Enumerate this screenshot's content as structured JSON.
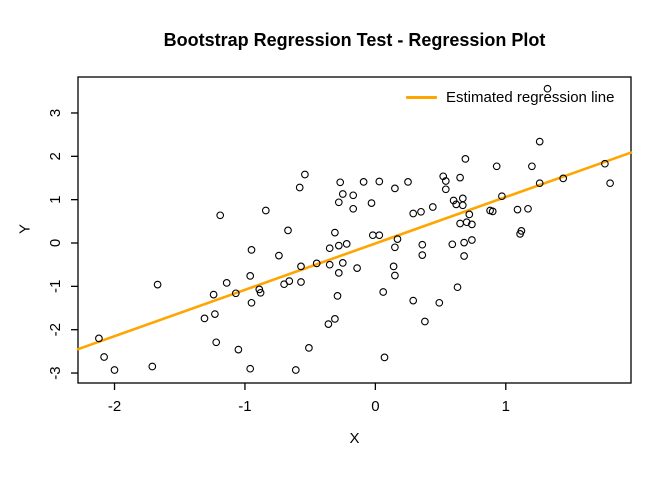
{
  "title": "Bootstrap Regression Test - Regression Plot",
  "colors": {
    "regression_line": "#FFA500",
    "point_stroke": "#000000",
    "axis": "#000000",
    "background": "#FFFFFF"
  },
  "legend": {
    "entries": [
      {
        "label": "Estimated regression line",
        "color": "#FFA500",
        "type": "line"
      }
    ],
    "position": "top-right",
    "box": "none"
  },
  "chart_data": {
    "type": "scatter",
    "title": "Bootstrap Regression Test - Regression Plot",
    "xlabel": "X",
    "ylabel": "Y",
    "xlim": [
      -2.28,
      1.96
    ],
    "ylim": [
      -3.23,
      3.83
    ],
    "x_ticks": [
      -2,
      -1,
      0,
      1
    ],
    "y_ticks": [
      -3,
      -2,
      -1,
      0,
      1,
      2,
      3
    ],
    "grid": false,
    "legend": {
      "entries": [
        {
          "label": "Estimated regression line",
          "color": "#FFA500",
          "type": "line"
        }
      ],
      "position": "top-right"
    },
    "regression_line": {
      "slope": 1.07,
      "intercept": -0.01,
      "color": "#FFA500"
    },
    "points": [
      [
        -0.54,
        1.58
      ],
      [
        -0.58,
        1.28
      ],
      [
        -0.27,
        1.4
      ],
      [
        -0.09,
        1.41
      ],
      [
        -0.25,
        1.13
      ],
      [
        -0.17,
        1.1
      ],
      [
        -0.28,
        0.94
      ],
      [
        -0.17,
        0.79
      ],
      [
        -1.19,
        0.64
      ],
      [
        -0.84,
        0.75
      ],
      [
        -0.67,
        0.29
      ],
      [
        -0.31,
        0.24
      ],
      [
        0.03,
        1.42
      ],
      [
        0.15,
        1.26
      ],
      [
        0.25,
        1.41
      ],
      [
        -0.03,
        0.92
      ],
      [
        0.29,
        0.68
      ],
      [
        0.35,
        0.72
      ],
      [
        -0.02,
        0.18
      ],
      [
        0.03,
        0.18
      ],
      [
        1.32,
        3.56
      ],
      [
        1.26,
        2.34
      ],
      [
        0.69,
        1.94
      ],
      [
        0.93,
        1.77
      ],
      [
        1.2,
        1.77
      ],
      [
        1.76,
        1.83
      ],
      [
        0.52,
        1.54
      ],
      [
        0.54,
        1.43
      ],
      [
        0.65,
        1.51
      ],
      [
        0.54,
        1.24
      ],
      [
        1.26,
        1.38
      ],
      [
        1.44,
        1.49
      ],
      [
        1.8,
        1.38
      ],
      [
        0.44,
        0.83
      ],
      [
        0.6,
        0.98
      ],
      [
        0.62,
        0.89
      ],
      [
        0.67,
        1.03
      ],
      [
        0.67,
        0.87
      ],
      [
        0.97,
        1.08
      ],
      [
        0.88,
        0.75
      ],
      [
        0.9,
        0.73
      ],
      [
        1.09,
        0.77
      ],
      [
        1.17,
        0.79
      ],
      [
        0.65,
        0.45
      ],
      [
        0.7,
        0.48
      ],
      [
        0.74,
        0.43
      ],
      [
        0.72,
        0.66
      ],
      [
        1.12,
        0.28
      ],
      [
        1.11,
        0.21
      ],
      [
        0.74,
        0.07
      ],
      [
        0.68,
        0.01
      ],
      [
        0.59,
        -0.03
      ],
      [
        0.36,
        -0.04
      ],
      [
        0.36,
        -0.28
      ],
      [
        0.68,
        -0.3
      ],
      [
        0.63,
        -1.02
      ],
      [
        -0.35,
        -0.12
      ],
      [
        -0.28,
        -0.06
      ],
      [
        -0.22,
        -0.02
      ],
      [
        -0.95,
        -0.16
      ],
      [
        -0.74,
        -0.29
      ],
      [
        -0.57,
        -0.54
      ],
      [
        -0.45,
        -0.47
      ],
      [
        -0.35,
        -0.5
      ],
      [
        -0.25,
        -0.46
      ],
      [
        -0.14,
        -0.58
      ],
      [
        -0.28,
        -0.69
      ],
      [
        -1.67,
        -0.96
      ],
      [
        -1.14,
        -0.92
      ],
      [
        -0.7,
        -0.95
      ],
      [
        -0.66,
        -0.88
      ],
      [
        -0.57,
        -0.9
      ],
      [
        -0.96,
        -0.76
      ],
      [
        -0.89,
        -1.07
      ],
      [
        -0.88,
        -1.15
      ],
      [
        -1.24,
        -1.19
      ],
      [
        -1.07,
        -1.16
      ],
      [
        -0.95,
        -1.38
      ],
      [
        -0.29,
        -1.22
      ],
      [
        -1.31,
        -1.74
      ],
      [
        -1.23,
        -1.64
      ],
      [
        -0.36,
        -1.87
      ],
      [
        -0.31,
        -1.75
      ],
      [
        -2.12,
        -2.2
      ],
      [
        -2.08,
        -2.63
      ],
      [
        -2.0,
        -2.93
      ],
      [
        -1.71,
        -2.85
      ],
      [
        -1.22,
        -2.29
      ],
      [
        -1.05,
        -2.46
      ],
      [
        -0.96,
        -2.9
      ],
      [
        -0.61,
        -2.93
      ],
      [
        -0.51,
        -2.42
      ],
      [
        0.06,
        -1.13
      ],
      [
        0.29,
        -1.33
      ],
      [
        0.49,
        -1.38
      ],
      [
        0.38,
        -1.81
      ],
      [
        0.07,
        -2.64
      ],
      [
        0.15,
        -0.1
      ],
      [
        0.17,
        0.09
      ],
      [
        0.14,
        -0.54
      ],
      [
        0.15,
        -0.75
      ]
    ]
  }
}
